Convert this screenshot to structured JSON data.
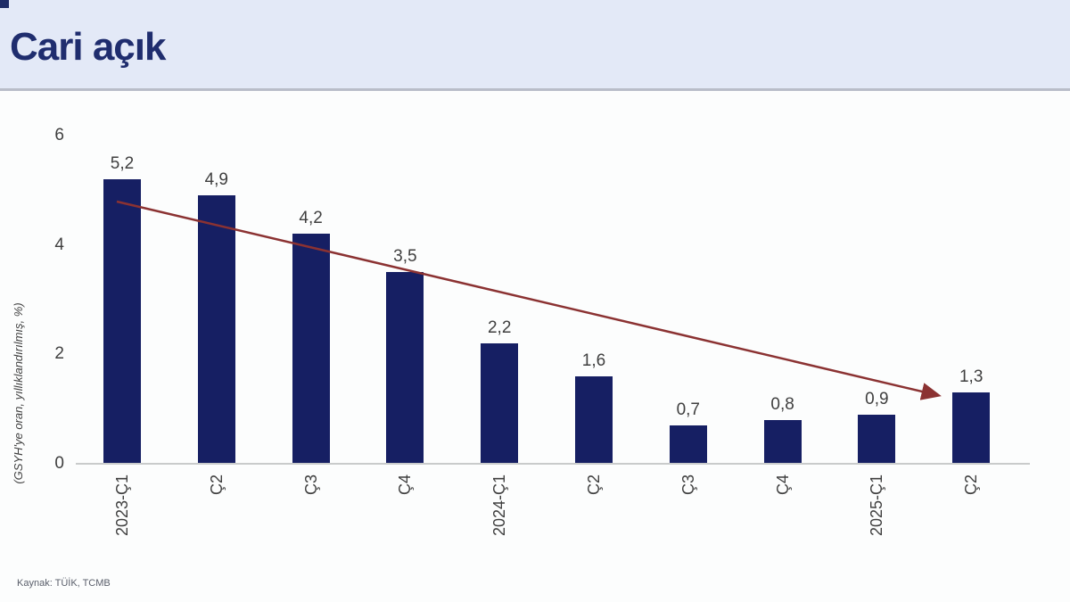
{
  "header": {
    "title": "Cari açık"
  },
  "source": "Kaynak: TÜİK, TCMB",
  "colors": {
    "bar": "#161F63",
    "arrow": "#8B3232",
    "title": "#1F2D6E",
    "header_bg": "#E3E9F7",
    "header_border": "#B9BDC9",
    "axis_line": "#C9CBCB",
    "text": "#3F3F3F"
  },
  "chart_data": {
    "type": "bar",
    "title": "Cari açık",
    "categories": [
      "2023-Ç1",
      "Ç2",
      "Ç3",
      "Ç4",
      "2024-Ç1",
      "Ç2",
      "Ç3",
      "Ç4",
      "2025-Ç1",
      "Ç2"
    ],
    "values": [
      5.2,
      4.9,
      4.2,
      3.5,
      2.2,
      1.6,
      0.7,
      0.8,
      0.9,
      1.3
    ],
    "value_labels": [
      "5,2",
      "4,9",
      "4,2",
      "3,5",
      "2,2",
      "1,6",
      "0,7",
      "0,8",
      "0,9",
      "1,3"
    ],
    "ylabel": "(GSYH'ye oran, yıllıklandırılmış, %)",
    "xlabel": "",
    "yticks": [
      0,
      2,
      4,
      6
    ],
    "ylim": [
      0,
      6
    ],
    "grid": false,
    "legend": false,
    "annotation": "declining trend arrow from first bar to last bar"
  }
}
